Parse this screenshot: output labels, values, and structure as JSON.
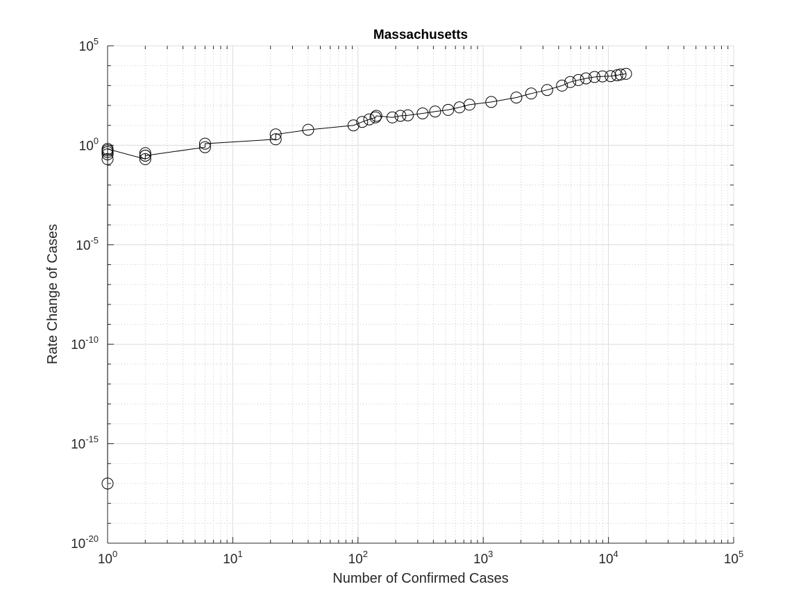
{
  "chart_data": {
    "type": "scatter",
    "title": "Massachusetts",
    "xlabel": "Number of Confirmed Cases",
    "ylabel": "Rate Change of Cases",
    "xscale": "log",
    "yscale": "log",
    "xlim": [
      1,
      100000
    ],
    "ylim": [
      1e-20,
      100000
    ],
    "grid": true,
    "minor_grid": true,
    "marker": "circle",
    "line_connected": true,
    "colors": {
      "line": "#000000",
      "major_grid": "#dcdcdc",
      "minor_grid": "#c8c8c8",
      "axis": "#262626"
    },
    "x_ticks": [
      {
        "base": "10",
        "exp": "0"
      },
      {
        "base": "10",
        "exp": "1"
      },
      {
        "base": "10",
        "exp": "2"
      },
      {
        "base": "10",
        "exp": "3"
      },
      {
        "base": "10",
        "exp": "4"
      },
      {
        "base": "10",
        "exp": "5"
      }
    ],
    "y_ticks": [
      {
        "base": "10",
        "exp": "5"
      },
      {
        "base": "10",
        "exp": "0"
      },
      {
        "base": "10",
        "exp": "-5"
      },
      {
        "base": "10",
        "exp": "-10"
      },
      {
        "base": "10",
        "exp": "-15"
      },
      {
        "base": "10",
        "exp": "-20"
      }
    ],
    "x": [
      1,
      1,
      1,
      1,
      1,
      1,
      2,
      2,
      2,
      2,
      6,
      6,
      22,
      22,
      40,
      92,
      108,
      123,
      138,
      140,
      188,
      218,
      250,
      328,
      413,
      525,
      646,
      777,
      1159,
      1838,
      2417,
      3240,
      4257,
      4955,
      5752,
      6620,
      7738,
      8966,
      10402,
      11736,
      12500,
      13837
    ],
    "y": [
      1e-17,
      0.2,
      0.35,
      0.45,
      0.55,
      0.65,
      0.2,
      0.3,
      0.4,
      0.3,
      0.8,
      1.2,
      2,
      3.5,
      6,
      10,
      15,
      20,
      25,
      30,
      25,
      30,
      32,
      40,
      50,
      60,
      80,
      110,
      150,
      250,
      400,
      600,
      1000,
      1500,
      1900,
      2300,
      2700,
      2900,
      3000,
      3300,
      3600,
      3900
    ]
  }
}
